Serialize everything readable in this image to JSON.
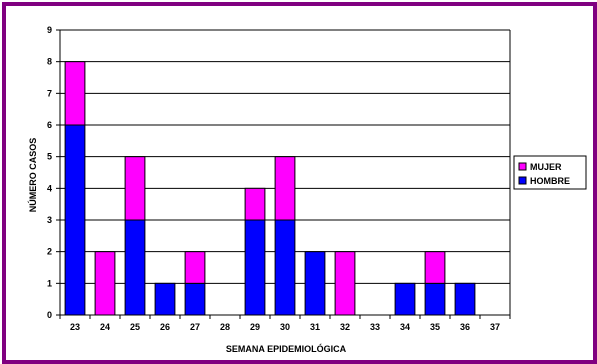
{
  "chart_data": {
    "type": "bar",
    "stacked": true,
    "categories": [
      "23",
      "24",
      "25",
      "26",
      "27",
      "28",
      "29",
      "30",
      "31",
      "32",
      "33",
      "34",
      "35",
      "36",
      "37"
    ],
    "series": [
      {
        "name": "HOMBRE",
        "color": "#0000FF",
        "values": [
          6,
          0,
          3,
          1,
          1,
          0,
          3,
          3,
          2,
          0,
          0,
          1,
          1,
          1,
          0
        ]
      },
      {
        "name": "MUJER",
        "color": "#FF00FF",
        "values": [
          2,
          2,
          2,
          0,
          1,
          0,
          1,
          2,
          0,
          2,
          0,
          0,
          1,
          0,
          0
        ]
      }
    ],
    "xlabel": "SEMANA EPIDEMIOLÓGICA",
    "ylabel": "NÚMERO CASOS",
    "ylim": [
      0,
      9
    ],
    "yticks": [
      "0",
      "1",
      "2",
      "3",
      "4",
      "5",
      "6",
      "7",
      "8",
      "9"
    ],
    "grid": true,
    "legend_position": "right",
    "legend_order": [
      "MUJER",
      "HOMBRE"
    ]
  }
}
